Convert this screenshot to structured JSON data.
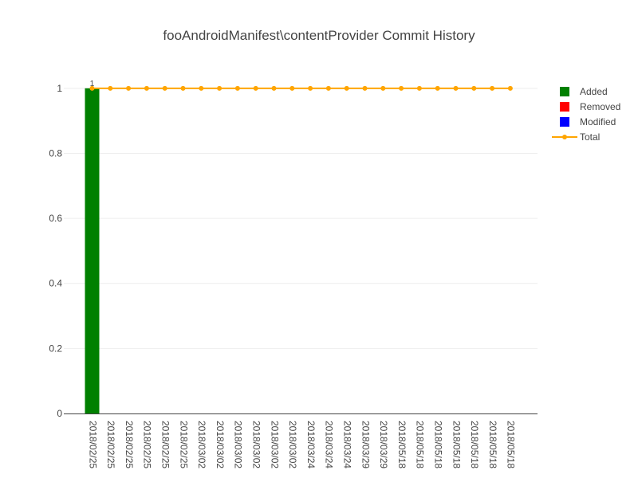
{
  "chart_data": {
    "type": "bar",
    "title": "fooAndroidManifest\\contentProvider Commit History",
    "xlabel": "",
    "ylabel": "",
    "ylim": [
      0,
      1.1
    ],
    "y_ticks": [
      "0",
      "0.2",
      "0.4",
      "0.6",
      "0.8",
      "1"
    ],
    "y_tick_values": [
      0,
      0.2,
      0.4,
      0.6,
      0.8,
      1
    ],
    "grid": true,
    "legend_position": "top-right",
    "categories": [
      "2018/02/25",
      "2018/02/25",
      "2018/02/25",
      "2018/02/25",
      "2018/02/25",
      "2018/02/25",
      "2018/03/02",
      "2018/03/02",
      "2018/03/02",
      "2018/03/02",
      "2018/03/02",
      "2018/03/02",
      "2018/03/24",
      "2018/03/24",
      "2018/03/24",
      "2018/03/29",
      "2018/03/29",
      "2018/05/18",
      "2018/05/18",
      "2018/05/18",
      "2018/05/18",
      "2018/05/18",
      "2018/05/18",
      "2018/05/18"
    ],
    "series": [
      {
        "name": "Added",
        "kind": "bar",
        "color": "#008000",
        "values": [
          1,
          0,
          0,
          0,
          0,
          0,
          0,
          0,
          0,
          0,
          0,
          0,
          0,
          0,
          0,
          0,
          0,
          0,
          0,
          0,
          0,
          0,
          0,
          0
        ],
        "labels": [
          "1",
          "",
          "",
          "",
          "",
          "",
          "",
          "",
          "",
          "",
          "",
          "",
          "",
          "",
          "",
          "",
          "",
          "",
          "",
          "",
          "",
          "",
          "",
          ""
        ]
      },
      {
        "name": "Removed",
        "kind": "bar",
        "color": "#ff0000",
        "values": [
          0,
          0,
          0,
          0,
          0,
          0,
          0,
          0,
          0,
          0,
          0,
          0,
          0,
          0,
          0,
          0,
          0,
          0,
          0,
          0,
          0,
          0,
          0,
          0
        ]
      },
      {
        "name": "Modified",
        "kind": "bar",
        "color": "#0000ff",
        "values": [
          0,
          0,
          0,
          0,
          0,
          0,
          0,
          0,
          0,
          0,
          0,
          0,
          0,
          0,
          0,
          0,
          0,
          0,
          0,
          0,
          0,
          0,
          0,
          0
        ]
      },
      {
        "name": "Total",
        "kind": "line",
        "color": "#ffa500",
        "values": [
          1,
          1,
          1,
          1,
          1,
          1,
          1,
          1,
          1,
          1,
          1,
          1,
          1,
          1,
          1,
          1,
          1,
          1,
          1,
          1,
          1,
          1,
          1,
          1
        ]
      }
    ]
  }
}
